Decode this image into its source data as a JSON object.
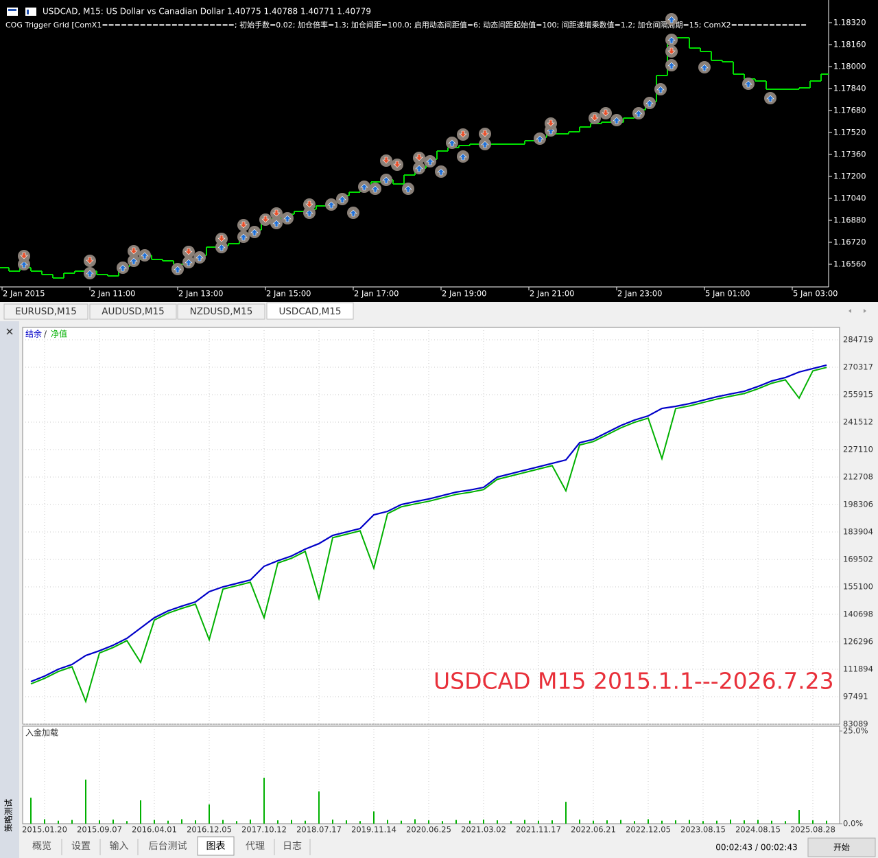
{
  "price_chart": {
    "type": "line",
    "title": "USDCAD, M15:  US Dollar vs Canadian Dollar  1.40775 1.40788 1.40771 1.40779",
    "subtitle": "COG Trigger Grid [ComX1=====================; 初始手数=0.02; 加仓倍率=1.3; 加仓间距=100.0; 启用动态间距值=6; 动态间距起始值=100; 间距递增乘数值=1.2; 加仓间隔周期=15; ComX2============",
    "color": "#00e000",
    "background": "#000000",
    "values": [
      1.16535,
      1.1651,
      1.16535,
      1.1651,
      1.16485,
      1.1646,
      1.16495,
      1.1651,
      1.1651,
      1.16485,
      1.16475,
      1.16545,
      1.16595,
      1.16625,
      1.16595,
      1.16585,
      1.1656,
      1.16595,
      1.16625,
      1.16685,
      1.16695,
      1.1671,
      1.16785,
      1.1681,
      1.1686,
      1.16895,
      1.16925,
      1.16945,
      1.1696,
      1.16985,
      1.1701,
      1.1706,
      1.17085,
      1.17125,
      1.1716,
      1.17175,
      1.17145,
      1.1721,
      1.1726,
      1.17325,
      1.17385,
      1.1741,
      1.17425,
      1.17435,
      1.17435,
      1.17435,
      1.17435,
      1.17435,
      1.1746,
      1.17485,
      1.1751,
      1.1751,
      1.17525,
      1.1756,
      1.17585,
      1.17595,
      1.17595,
      1.17625,
      1.17685,
      1.17745,
      1.17935,
      1.1821,
      1.1821,
      1.18135,
      1.1811,
      1.18045,
      1.18035,
      1.17945,
      1.1791,
      1.17895,
      1.17835,
      1.17835,
      1.17835,
      1.17845,
      1.17895,
      1.17945
    ],
    "xlim": [
      -0.1875,
      75.3125
    ],
    "xticks": [
      {
        "value": 0,
        "label": "2 Jan 2015"
      },
      {
        "value": 8,
        "label": "2 Jan 11:00"
      },
      {
        "value": 16,
        "label": "2 Jan 13:00"
      },
      {
        "value": 24,
        "label": "2 Jan 15:00"
      },
      {
        "value": 32,
        "label": "2 Jan 17:00"
      },
      {
        "value": 40,
        "label": "2 Jan 19:00"
      },
      {
        "value": 48,
        "label": "2 Jan 21:00"
      },
      {
        "value": 56,
        "label": "2 Jan 23:00"
      },
      {
        "value": 64,
        "label": "5 Jan 01:00"
      },
      {
        "value": 72,
        "label": "5 Jan 03:00"
      }
    ],
    "ylim": [
      1.16395,
      1.18485
    ],
    "yticks": [
      {
        "value": 1.1832,
        "label": "1.18320"
      },
      {
        "value": 1.1816,
        "label": "1.18160"
      },
      {
        "value": 1.18,
        "label": "1.18000"
      },
      {
        "value": 1.1784,
        "label": "1.17840"
      },
      {
        "value": 1.1768,
        "label": "1.17680"
      },
      {
        "value": 1.1752,
        "label": "1.17520"
      },
      {
        "value": 1.1736,
        "label": "1.17360"
      },
      {
        "value": 1.172,
        "label": "1.17200"
      },
      {
        "value": 1.1704,
        "label": "1.17040"
      },
      {
        "value": 1.1688,
        "label": "1.16880"
      },
      {
        "value": 1.1672,
        "label": "1.16720"
      },
      {
        "value": 1.1656,
        "label": "1.16560"
      }
    ],
    "marker_color": "#8a8078",
    "buys": {
      "color": "#1f6fd6",
      "x": [
        2,
        8,
        11,
        12,
        13,
        16,
        17,
        18,
        20,
        22,
        23,
        25,
        26,
        28,
        30,
        31,
        32,
        33,
        34,
        35,
        37,
        38,
        39,
        40,
        41,
        42,
        44,
        49,
        50,
        56,
        58,
        59,
        60,
        61,
        61,
        61,
        64,
        68,
        70
      ],
      "y": [
        1.1656,
        1.16495,
        1.16535,
        1.16585,
        1.16625,
        1.16525,
        1.16575,
        1.1661,
        1.16685,
        1.1676,
        1.16795,
        1.1686,
        1.16895,
        1.16935,
        1.16995,
        1.17035,
        1.16935,
        1.17125,
        1.1711,
        1.17175,
        1.1711,
        1.1726,
        1.1731,
        1.17235,
        1.17445,
        1.17345,
        1.17435,
        1.17475,
        1.17535,
        1.1761,
        1.1766,
        1.17735,
        1.17835,
        1.1801,
        1.18195,
        1.18345,
        1.17995,
        1.17875,
        1.1777
      ]
    },
    "sells": {
      "color": "#e8502a",
      "x": [
        2,
        8,
        12,
        17,
        20,
        22,
        24,
        25,
        28,
        35,
        36,
        38,
        42,
        44,
        50,
        54,
        55,
        61
      ],
      "y": [
        1.1662,
        1.16585,
        1.16655,
        1.1665,
        1.16745,
        1.16845,
        1.16885,
        1.1693,
        1.16995,
        1.17315,
        1.17285,
        1.17335,
        1.17505,
        1.1751,
        1.17585,
        1.17625,
        1.1766,
        1.1811
      ]
    }
  },
  "symbol_tabs": [
    "EURUSD,M15",
    "AUDUSD,M15",
    "NZDUSD,M15",
    "USDCAD,M15"
  ],
  "balance_chart": {
    "type": "line",
    "legend_separator": "/",
    "categories": [
      null,
      "2015.01.20",
      null,
      null,
      null,
      "2015.09.07",
      null,
      null,
      null,
      "2016.04.01",
      null,
      null,
      null,
      "2016.12.05",
      null,
      null,
      null,
      "2017.10.12",
      null,
      null,
      null,
      "2018.07.17",
      null,
      null,
      null,
      "2019.11.14",
      null,
      null,
      null,
      "2020.06.25",
      null,
      null,
      null,
      "2021.03.02",
      null,
      null,
      null,
      "2021.11.17",
      null,
      null,
      null,
      "2022.06.21",
      null,
      null,
      null,
      "2022.12.05",
      null,
      null,
      null,
      "2023.08.15",
      null,
      null,
      null,
      "2024.08.15",
      null,
      null,
      null,
      "2025.08.28",
      null
    ],
    "series": [
      {
        "name": "结余",
        "color": "#0000c8",
        "values": [
          105400,
          108300,
          111900,
          114400,
          119100,
          121600,
          124500,
          128100,
          133500,
          138900,
          142500,
          145000,
          147200,
          152600,
          155100,
          156900,
          158700,
          165900,
          168800,
          171300,
          174900,
          177800,
          182100,
          183900,
          185700,
          192900,
          194700,
          198300,
          199800,
          201200,
          203000,
          204800,
          205900,
          207300,
          212700,
          214500,
          216300,
          218100,
          219900,
          221700,
          230700,
          232500,
          236100,
          239700,
          242600,
          244800,
          248700,
          249800,
          251200,
          253000,
          254800,
          256300,
          257700,
          260200,
          263100,
          264900,
          267800,
          269600,
          271400
        ]
      },
      {
        "name": "净值",
        "color": "#00b000",
        "values": [
          104200,
          107100,
          110700,
          113200,
          95000,
          120400,
          123300,
          126900,
          115500,
          137700,
          141300,
          143800,
          146000,
          127400,
          153900,
          155700,
          157500,
          138900,
          167600,
          170100,
          173700,
          149000,
          180900,
          182700,
          184500,
          164900,
          193500,
          197100,
          198600,
          200000,
          201800,
          203600,
          204700,
          206100,
          211500,
          213300,
          215100,
          216900,
          218700,
          205500,
          229500,
          231300,
          234900,
          238500,
          241400,
          243600,
          222400,
          248600,
          250000,
          251800,
          253600,
          255100,
          256500,
          259000,
          261900,
          263700,
          254100,
          268400,
          270200
        ]
      }
    ],
    "ylim": [
      83089,
      291200
    ],
    "yticks": [
      284719,
      270317,
      255915,
      241512,
      227110,
      212708,
      198306,
      183904,
      169502,
      155100,
      140698,
      126296,
      111894,
      97491,
      83089
    ],
    "grid": true,
    "annotation": "USDCAD M15 2015.1.1---2026.7.23"
  },
  "load_chart": {
    "type": "bar",
    "title": "入金加载",
    "color": "#00b000",
    "values": [
      7.0,
      1.2,
      0.8,
      1.0,
      11.9,
      0.9,
      1.1,
      0.7,
      6.3,
      1.0,
      0.8,
      1.2,
      0.9,
      5.2,
      1.0,
      0.7,
      1.1,
      12.4,
      0.9,
      1.0,
      0.8,
      8.7,
      1.1,
      0.9,
      0.7,
      3.3,
      1.0,
      0.8,
      1.2,
      0.9,
      0.7,
      1.0,
      0.8,
      1.1,
      0.9,
      0.7,
      1.0,
      0.8,
      0.9,
      5.9,
      1.1,
      0.8,
      0.9,
      1.0,
      0.7,
      1.2,
      0.8,
      0.9,
      1.0,
      0.7,
      0.8,
      1.1,
      0.9,
      1.0,
      0.8,
      0.7,
      3.7,
      0.9,
      0.8
    ],
    "ylim": [
      0,
      26.3
    ],
    "yticks": [
      {
        "value": 25,
        "label": "25.0%"
      },
      {
        "value": 0,
        "label": "0.0%"
      }
    ]
  },
  "bottom_tabs": [
    "概览",
    "设置",
    "输入",
    "后台测试",
    "图表",
    "代理",
    "日志"
  ],
  "side_title": "策略测试",
  "timer": "00:02:43 / 00:02:43",
  "start_button": "开始"
}
